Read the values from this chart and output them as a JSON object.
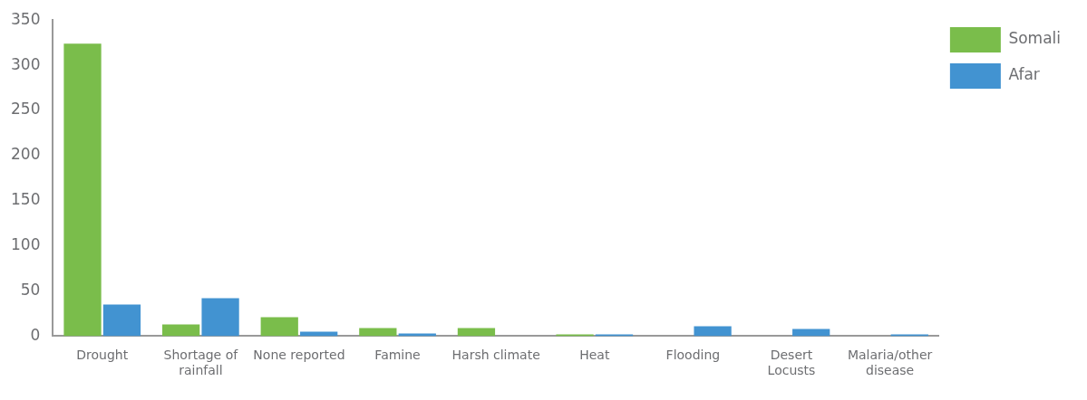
{
  "chart_data": {
    "type": "bar",
    "categories": [
      "Drought",
      "Shortage of rainfall",
      "None reported",
      "Famine",
      "Harsh climate",
      "Heat",
      "Flooding",
      "Desert Locusts",
      "Malaria/other disease"
    ],
    "series": [
      {
        "name": "Somali",
        "color": "#7abd4b",
        "values": [
          324,
          13,
          21,
          9,
          9,
          2,
          0,
          0,
          0
        ]
      },
      {
        "name": "Afar",
        "color": "#4293d1",
        "values": [
          35,
          42,
          5,
          3,
          0,
          2,
          11,
          8,
          2
        ]
      }
    ],
    "ylim": [
      0,
      350
    ],
    "yticks": [
      0,
      50,
      100,
      150,
      200,
      250,
      300,
      350
    ],
    "grid": false,
    "legend": "top right"
  }
}
